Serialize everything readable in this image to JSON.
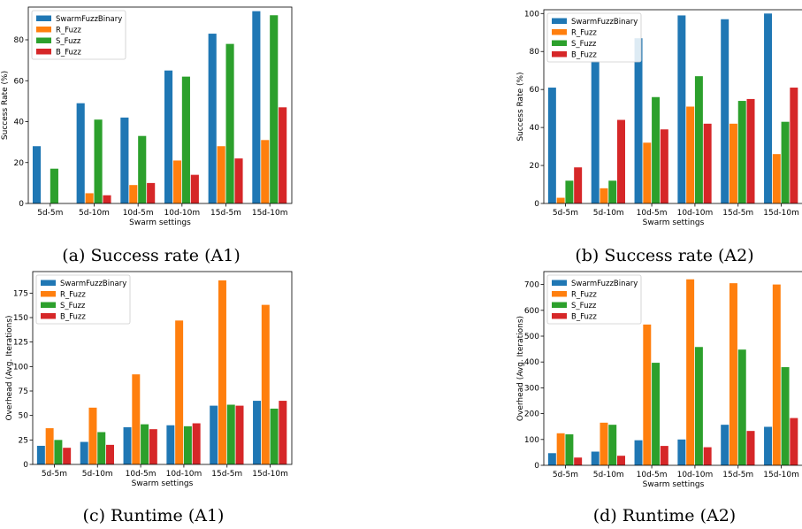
{
  "colors": {
    "SwarmFuzzBinary": "#1f77b4",
    "R_Fuzz": "#ff7f0e",
    "S_Fuzz": "#2ca02c",
    "B_Fuzz": "#d62728"
  },
  "chart_data": [
    {
      "type": "bar",
      "caption": "(a) Success rate (A1)",
      "xlabel": "Swarm settings",
      "ylabel": "Success Rate (%)",
      "ylim": [
        0,
        96
      ],
      "yticks": [
        0,
        20,
        40,
        60,
        80
      ],
      "grid": false,
      "legend": "top-left",
      "categories": [
        "5d-5m",
        "5d-10m",
        "10d-5m",
        "10d-10m",
        "15d-5m",
        "15d-10m"
      ],
      "series": [
        {
          "name": "SwarmFuzzBinary",
          "values": [
            28,
            49,
            42,
            65,
            83,
            94
          ]
        },
        {
          "name": "R_Fuzz",
          "values": [
            0,
            5,
            9,
            21,
            28,
            31
          ]
        },
        {
          "name": "S_Fuzz",
          "values": [
            17,
            41,
            33,
            62,
            78,
            92
          ]
        },
        {
          "name": "B_Fuzz",
          "values": [
            0,
            4,
            10,
            14,
            22,
            47
          ]
        }
      ]
    },
    {
      "type": "bar",
      "caption": "(b) Success rate (A2)",
      "xlabel": "Swarm settings",
      "ylabel": "Success Rate (%)",
      "ylim": [
        0,
        102
      ],
      "yticks": [
        0,
        20,
        40,
        60,
        80,
        100
      ],
      "grid": false,
      "legend": "top-left",
      "categories": [
        "5d-5m",
        "5d-10m",
        "10d-5m",
        "10d-10m",
        "15d-5m",
        "15d-10m"
      ],
      "series": [
        {
          "name": "SwarmFuzzBinary",
          "values": [
            61,
            75,
            87,
            99,
            97,
            100
          ]
        },
        {
          "name": "R_Fuzz",
          "values": [
            3,
            8,
            32,
            51,
            42,
            26
          ]
        },
        {
          "name": "S_Fuzz",
          "values": [
            12,
            12,
            56,
            67,
            54,
            43
          ]
        },
        {
          "name": "B_Fuzz",
          "values": [
            19,
            44,
            39,
            42,
            55,
            61
          ]
        }
      ]
    },
    {
      "type": "bar",
      "caption": "(c) Runtime (A1)",
      "xlabel": "Swarm settings",
      "ylabel": "Overhead (Avg. Iterations)",
      "ylim": [
        0,
        197
      ],
      "yticks": [
        0,
        25,
        50,
        75,
        100,
        125,
        150,
        175
      ],
      "grid": false,
      "legend": "top-left",
      "categories": [
        "5d-5m",
        "5d-10m",
        "10d-5m",
        "10d-10m",
        "15d-5m",
        "15d-10m"
      ],
      "series": [
        {
          "name": "SwarmFuzzBinary",
          "values": [
            19,
            23,
            38,
            40,
            60,
            65
          ]
        },
        {
          "name": "R_Fuzz",
          "values": [
            37,
            58,
            92,
            147,
            188,
            163
          ]
        },
        {
          "name": "S_Fuzz",
          "values": [
            25,
            33,
            41,
            39,
            61,
            57
          ]
        },
        {
          "name": "B_Fuzz",
          "values": [
            17,
            20,
            36,
            42,
            60,
            65
          ]
        }
      ]
    },
    {
      "type": "bar",
      "caption": "(d) Runtime (A2)",
      "xlabel": "Swarm settings",
      "ylabel": "Overhead (Avg. Iterations)",
      "ylim": [
        0,
        750
      ],
      "yticks": [
        0,
        100,
        200,
        300,
        400,
        500,
        600,
        700
      ],
      "grid": false,
      "legend": "top-left",
      "categories": [
        "5d-5m",
        "5d-10m",
        "10d-5m",
        "10d-10m",
        "15d-5m",
        "15d-10m"
      ],
      "series": [
        {
          "name": "SwarmFuzzBinary",
          "values": [
            47,
            53,
            97,
            100,
            157,
            149
          ]
        },
        {
          "name": "R_Fuzz",
          "values": [
            124,
            165,
            545,
            720,
            705,
            700
          ]
        },
        {
          "name": "S_Fuzz",
          "values": [
            120,
            157,
            397,
            458,
            448,
            380
          ]
        },
        {
          "name": "B_Fuzz",
          "values": [
            30,
            37,
            75,
            70,
            133,
            183
          ]
        }
      ]
    }
  ]
}
